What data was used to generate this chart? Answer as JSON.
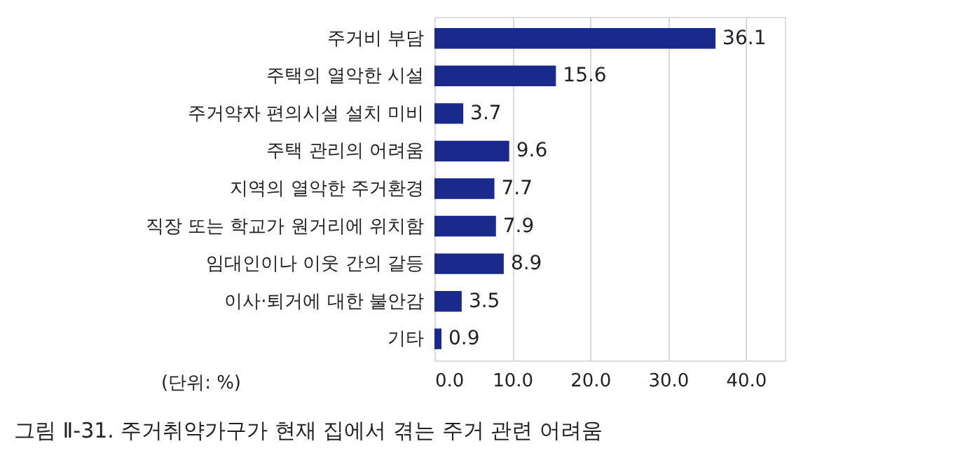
{
  "chart_data": {
    "type": "bar",
    "orientation": "horizontal",
    "title": "그림 Ⅱ-31. 주거취약가구가 현재 집에서 겪는 주거 관련 어려움",
    "categories": [
      "주거비 부담",
      "주택의 열악한 시설",
      "주거약자 편의시설 설치 미비",
      "주택 관리의 어려움",
      "지역의 열악한 주거환경",
      "직장 또는 학교가 원거리에 위치함",
      "임대인이나 이웃 간의 갈등",
      "이사·퇴거에 대한 불안감",
      "기타"
    ],
    "values": [
      36.1,
      15.6,
      3.7,
      9.6,
      7.7,
      7.9,
      8.9,
      3.5,
      0.9
    ],
    "color": "#1a2a8c",
    "xlim": [
      0,
      45
    ],
    "xticks": [
      {
        "value": 0,
        "label": "0.0"
      },
      {
        "value": 10,
        "label": "10.0"
      },
      {
        "value": 20,
        "label": "20.0"
      },
      {
        "value": 30,
        "label": "30.0"
      },
      {
        "value": 40,
        "label": "40.0"
      }
    ],
    "grid": "x",
    "data_labels": true,
    "annotations": [
      "(단위: %)"
    ]
  }
}
